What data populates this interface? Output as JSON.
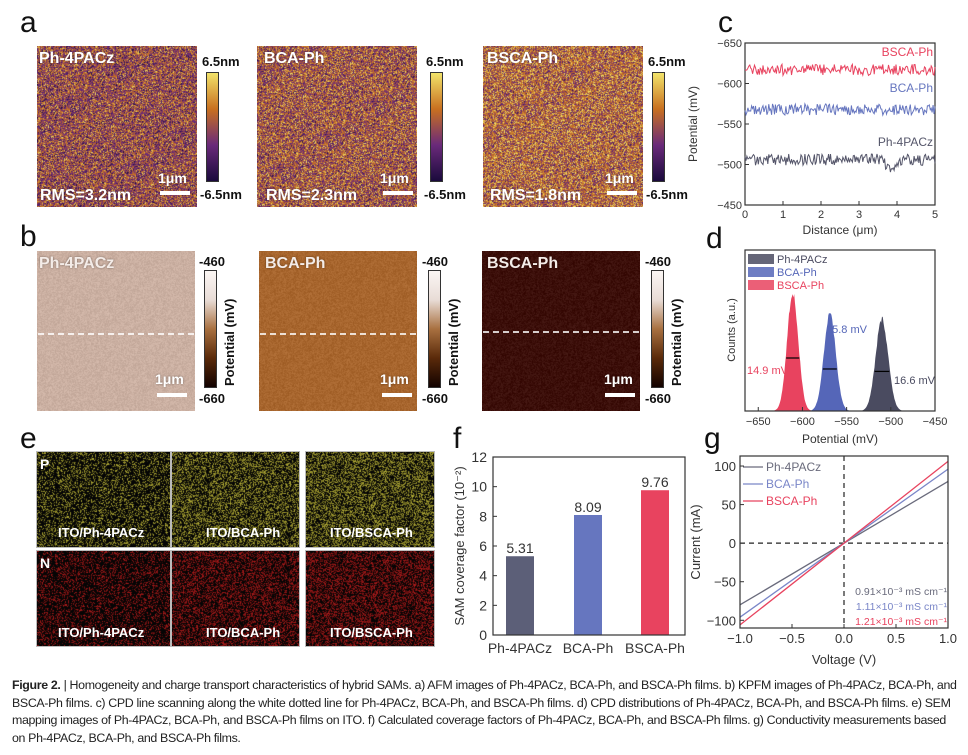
{
  "panel_labels": {
    "a": "a",
    "b": "b",
    "c": "c",
    "d": "d",
    "e": "e",
    "f": "f",
    "g": "g"
  },
  "afm": {
    "samples": [
      {
        "name": "Ph-4PACz",
        "rms": "RMS=3.2nm"
      },
      {
        "name": "BCA-Ph",
        "rms": "RMS=2.3nm"
      },
      {
        "name": "BSCA-Ph",
        "rms": "RMS=1.8nm"
      }
    ],
    "scale_bar": "1μm",
    "cbar_max": "6.5nm",
    "cbar_min": "-6.5nm",
    "colormap": [
      "#1a0a3c",
      "#6a2a7a",
      "#c87020",
      "#f2e36a"
    ]
  },
  "kpfm": {
    "samples": [
      {
        "name": "Ph-4PACz",
        "color": "#cbb0a2"
      },
      {
        "name": "BCA-Ph",
        "color": "#a8662e"
      },
      {
        "name": "BSCA-Ph",
        "color": "#3c0f0a"
      }
    ],
    "scale_bar": "1μm",
    "cbar_max": "-460",
    "cbar_min": "-660",
    "cbar_label": "Potential (mV)"
  },
  "sem": {
    "rows": [
      {
        "element": "P",
        "color": "#d8d040"
      },
      {
        "element": "N",
        "color": "#d02020"
      }
    ],
    "labels": [
      "ITO/Ph-4PACz",
      "ITO/BCA-Ph",
      "ITO/BSCA-Ph"
    ]
  },
  "chart_data": [
    {
      "panel": "c",
      "type": "line",
      "xlabel": "Distance (μm)",
      "ylabel": "Potential (mV)",
      "xlim": [
        0,
        5
      ],
      "ylim": [
        -650,
        -450
      ],
      "y_inverted": true,
      "xticks": [
        0,
        1,
        2,
        3,
        4,
        5
      ],
      "yticks": [
        -650,
        -600,
        -550,
        -500,
        -450
      ],
      "series": [
        {
          "name": "BSCA-Ph",
          "color": "#e8435f",
          "mean": -617
        },
        {
          "name": "BCA-Ph",
          "color": "#6676bf",
          "mean": -568
        },
        {
          "name": "Ph-4PACz",
          "color": "#55566a",
          "mean": -506
        }
      ]
    },
    {
      "panel": "d",
      "type": "area",
      "xlabel": "Potential (mV)",
      "ylabel": "Counts (a.u.)",
      "xlim": [
        -665,
        -450
      ],
      "xticks": [
        -650,
        -600,
        -550,
        -500,
        -450
      ],
      "legend": "top-left",
      "series": [
        {
          "name": "Ph-4PACz",
          "color": "#4a4b60",
          "center": -510,
          "fwhm": 16.6,
          "fwhm_label": "16.6 mV",
          "rel_height": 0.78
        },
        {
          "name": "BCA-Ph",
          "color": "#5566b8",
          "center": -569,
          "fwhm": 15.8,
          "fwhm_label": "15.8 mV",
          "rel_height": 0.82
        },
        {
          "name": "BSCA-Ph",
          "color": "#e8435f",
          "center": -611,
          "fwhm": 14.9,
          "fwhm_label": "14.9 mV",
          "rel_height": 1.0
        }
      ]
    },
    {
      "panel": "f",
      "type": "bar",
      "ylabel": "SAM coverage factor (10⁻²)",
      "ylim": [
        0,
        12
      ],
      "yticks": [
        0,
        2,
        4,
        6,
        8,
        10,
        12
      ],
      "categories": [
        "Ph-4PACz",
        "BCA-Ph",
        "BSCA-Ph"
      ],
      "values": [
        5.31,
        8.09,
        9.76
      ],
      "value_labels": [
        "5.31",
        "8.09",
        "9.76"
      ],
      "colors": [
        "#5c5f78",
        "#6676bf",
        "#e8435f"
      ]
    },
    {
      "panel": "g",
      "type": "line",
      "xlabel": "Voltage (V)",
      "ylabel": "Current (mA)",
      "xlim": [
        -1,
        1
      ],
      "ylim": [
        -110,
        113
      ],
      "xticks": [
        "-1.0",
        "-0.5",
        "0.0",
        "0.5",
        "1.0"
      ],
      "yticks": [
        -100,
        -50,
        0,
        50,
        100
      ],
      "legend": "top-left",
      "series": [
        {
          "name": "Ph-4PACz",
          "color": "#6a6b7c",
          "slope_mA_per_V": 80,
          "conductivity": "0.91×10⁻³ mS cm⁻¹"
        },
        {
          "name": "BCA-Ph",
          "color": "#7a86c8",
          "slope_mA_per_V": 96,
          "conductivity": "1.11×10⁻³ mS cm⁻¹"
        },
        {
          "name": "BSCA-Ph",
          "color": "#e8435f",
          "slope_mA_per_V": 106,
          "conductivity": "1.21×10⁻³ mS cm⁻¹"
        }
      ]
    }
  ],
  "caption": {
    "label": "Figure 2.",
    "text": " | Homogeneity and charge transport characteristics of hybrid SAMs. a) AFM images of Ph-4PACz, BCA-Ph, and BSCA-Ph films. b) KPFM images of Ph-4PACz, BCA-Ph, and BSCA-Ph films. c) CPD line scanning along the white dotted line for Ph-4PACz, BCA-Ph, and BSCA-Ph films. d) CPD distributions of Ph-4PACz, BCA-Ph, and BSCA-Ph films. e) SEM mapping images of Ph-4PACz, BCA-Ph, and BSCA-Ph films on ITO. f) Calculated coverage factors of Ph-4PACz, BCA-Ph, and BSCA-Ph films. g) Conductivity measurements based on Ph-4PACz, BCA-Ph, and BSCA-Ph films."
  }
}
